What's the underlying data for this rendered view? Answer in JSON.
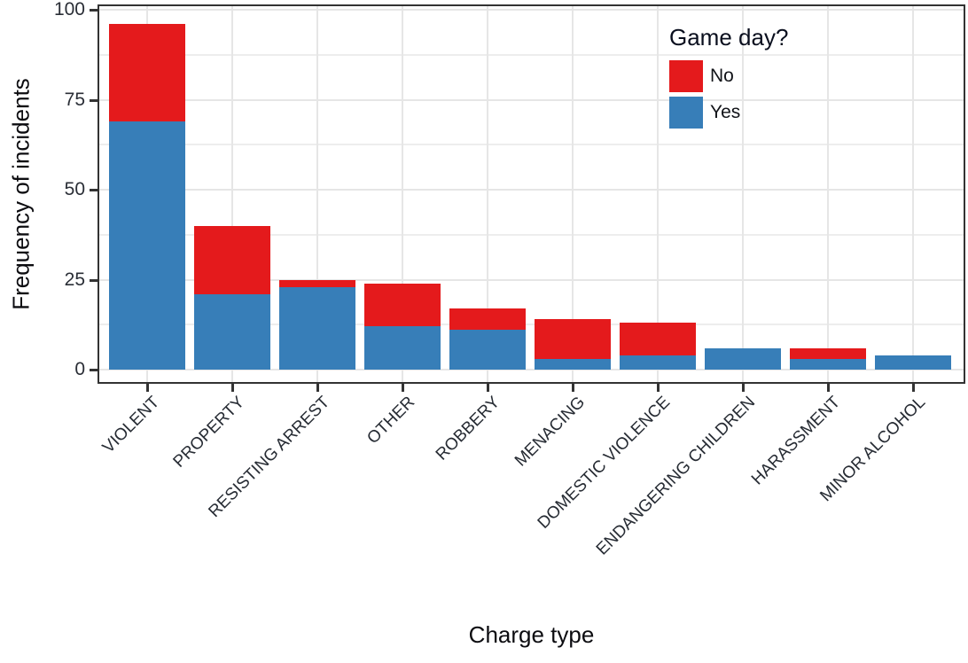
{
  "chart_data": {
    "type": "bar",
    "stacked": true,
    "xlabel": "Charge type",
    "ylabel": "Frequency of incidents",
    "categories": [
      "VIOLENT",
      "PROPERTY",
      "RESISTING ARREST",
      "OTHER",
      "ROBBERY",
      "MENACING",
      "DOMESTIC VIOLENCE",
      "ENDANGERING CHILDREN",
      "HARASSMENT",
      "MINOR ALCOHOL"
    ],
    "series": [
      {
        "name": "Yes",
        "color": "#377EB8",
        "values": [
          69,
          21,
          23,
          12,
          11,
          3,
          4,
          6,
          3,
          4
        ]
      },
      {
        "name": "No",
        "color": "#E41A1C",
        "values": [
          27,
          19,
          2,
          12,
          6,
          11,
          9,
          0,
          3,
          0
        ]
      }
    ],
    "ylim": [
      0,
      100
    ],
    "yticks": [
      0,
      25,
      50,
      75,
      100
    ],
    "yminor": [
      12.5,
      37.5,
      62.5,
      87.5
    ],
    "grid": true,
    "legend": {
      "title": "Game day?",
      "position": "top-right",
      "entries": [
        {
          "label": "No",
          "color": "#E41A1C"
        },
        {
          "label": "Yes",
          "color": "#377EB8"
        }
      ]
    }
  }
}
